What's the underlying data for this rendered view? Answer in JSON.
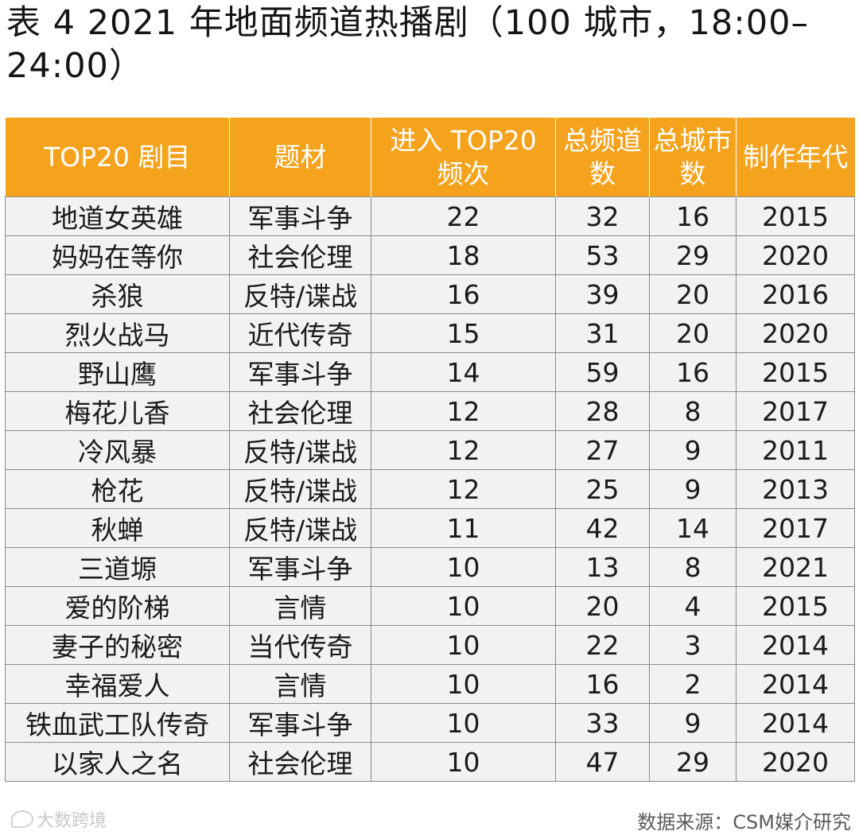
{
  "title": "表 4 2021 年地面频道热播剧（100 城市，18:00–24:00）",
  "table": {
    "headers": [
      "TOP20 剧目",
      "题材",
      "进入 TOP20 频次",
      "总频道数",
      "总城市数",
      "制作年代"
    ],
    "rows": [
      [
        "地道女英雄",
        "军事斗争",
        "22",
        "32",
        "16",
        "2015"
      ],
      [
        "妈妈在等你",
        "社会伦理",
        "18",
        "53",
        "29",
        "2020"
      ],
      [
        "杀狼",
        "反特/谍战",
        "16",
        "39",
        "20",
        "2016"
      ],
      [
        "烈火战马",
        "近代传奇",
        "15",
        "31",
        "20",
        "2020"
      ],
      [
        "野山鹰",
        "军事斗争",
        "14",
        "59",
        "16",
        "2015"
      ],
      [
        "梅花儿香",
        "社会伦理",
        "12",
        "28",
        "8",
        "2017"
      ],
      [
        "冷风暴",
        "反特/谍战",
        "12",
        "27",
        "9",
        "2011"
      ],
      [
        "枪花",
        "反特/谍战",
        "12",
        "25",
        "9",
        "2013"
      ],
      [
        "秋蝉",
        "反特/谍战",
        "11",
        "42",
        "14",
        "2017"
      ],
      [
        "三道塬",
        "军事斗争",
        "10",
        "13",
        "8",
        "2021"
      ],
      [
        "爱的阶梯",
        "言情",
        "10",
        "20",
        "4",
        "2015"
      ],
      [
        "妻子的秘密",
        "当代传奇",
        "10",
        "22",
        "3",
        "2014"
      ],
      [
        "幸福爱人",
        "言情",
        "10",
        "16",
        "2",
        "2014"
      ],
      [
        "铁血武工队传奇",
        "军事斗争",
        "10",
        "33",
        "9",
        "2014"
      ],
      [
        "以家人之名",
        "社会伦理",
        "10",
        "47",
        "29",
        "2020"
      ]
    ]
  },
  "watermark": "大数跨境",
  "source": "数据来源：CSM媒介研究",
  "colors": {
    "header_bg": "#f5a21c",
    "header_text": "#ffffff",
    "cell_bg": "#f2f2f2",
    "grid": "#8a8a8a"
  }
}
